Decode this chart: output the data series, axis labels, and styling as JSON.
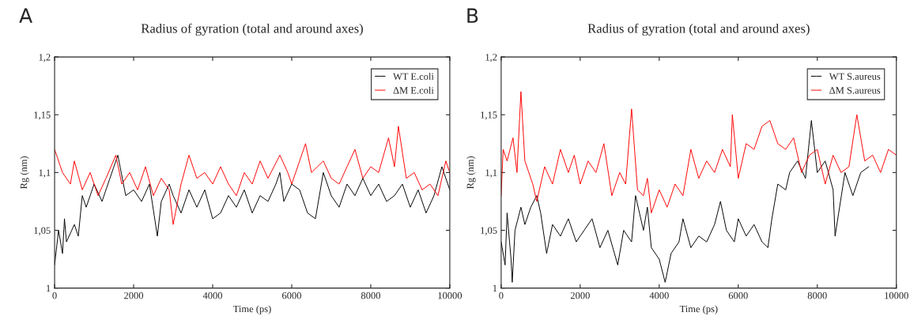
{
  "chart_data": [
    {
      "type": "line",
      "title": "Radius of gyration (total and around axes)",
      "xlabel": "Time (ps)",
      "ylabel": "Rg (nm)",
      "annotations": [
        "A"
      ],
      "xlim": [
        0,
        10000
      ],
      "xticks": [
        0,
        2000,
        4000,
        6000,
        8000,
        10000
      ],
      "ylim": [
        1,
        1.2
      ],
      "yticks": [
        1,
        {
          "value": 1.05,
          "label": "1,05"
        },
        {
          "value": 1.1,
          "label": "1,1"
        },
        {
          "value": 1.15,
          "label": "1,15"
        },
        {
          "value": 1.2,
          "label": "1,2"
        }
      ],
      "grid": false,
      "legend": "top right",
      "series": [
        {
          "name": "WT E.coli",
          "color": "#000000",
          "x": [
            0,
            100,
            200,
            250,
            300,
            500,
            600,
            700,
            800,
            1000,
            1200,
            1400,
            1600,
            1800,
            2000,
            2200,
            2400,
            2600,
            2700,
            2900,
            3000,
            3200,
            3400,
            3600,
            3800,
            4000,
            4200,
            4400,
            4600,
            4800,
            5000,
            5200,
            5400,
            5600,
            5700,
            5800,
            6000,
            6200,
            6400,
            6600,
            6800,
            7000,
            7200,
            7400,
            7600,
            7800,
            8000,
            8200,
            8400,
            8600,
            8800,
            9000,
            9200,
            9400,
            9600,
            9800,
            10000
          ],
          "values": [
            1.02,
            1.05,
            1.03,
            1.06,
            1.04,
            1.055,
            1.045,
            1.08,
            1.07,
            1.09,
            1.075,
            1.095,
            1.115,
            1.08,
            1.085,
            1.075,
            1.09,
            1.045,
            1.075,
            1.09,
            1.08,
            1.065,
            1.085,
            1.07,
            1.085,
            1.06,
            1.065,
            1.08,
            1.07,
            1.085,
            1.065,
            1.08,
            1.075,
            1.09,
            1.1,
            1.075,
            1.09,
            1.085,
            1.065,
            1.06,
            1.1,
            1.08,
            1.07,
            1.09,
            1.08,
            1.095,
            1.08,
            1.09,
            1.075,
            1.08,
            1.09,
            1.07,
            1.085,
            1.065,
            1.08,
            1.105,
            1.085
          ]
        },
        {
          "name": "ΔM E.coli",
          "color": "#ff0000",
          "x": [
            0,
            200,
            400,
            500,
            700,
            900,
            1100,
            1300,
            1550,
            1700,
            1900,
            2100,
            2300,
            2500,
            2700,
            2900,
            3000,
            3200,
            3400,
            3600,
            3800,
            4000,
            4200,
            4400,
            4600,
            4800,
            5000,
            5200,
            5400,
            5700,
            5900,
            6000,
            6200,
            6350,
            6500,
            6800,
            7000,
            7200,
            7400,
            7600,
            7800,
            8000,
            8200,
            8450,
            8600,
            8700,
            8900,
            9100,
            9300,
            9500,
            9700,
            9900,
            10000
          ],
          "values": [
            1.12,
            1.1,
            1.09,
            1.11,
            1.085,
            1.1,
            1.08,
            1.095,
            1.115,
            1.09,
            1.1,
            1.085,
            1.105,
            1.08,
            1.095,
            1.085,
            1.055,
            1.09,
            1.115,
            1.095,
            1.1,
            1.09,
            1.105,
            1.09,
            1.08,
            1.1,
            1.09,
            1.11,
            1.095,
            1.115,
            1.1,
            1.09,
            1.11,
            1.125,
            1.1,
            1.11,
            1.095,
            1.09,
            1.105,
            1.12,
            1.095,
            1.105,
            1.1,
            1.13,
            1.105,
            1.14,
            1.095,
            1.1,
            1.085,
            1.09,
            1.08,
            1.11,
            1.1
          ]
        }
      ]
    },
    {
      "type": "line",
      "title": "Radius of gyration (total and around axes)",
      "xlabel": "Time (ps)",
      "ylabel": "Rg (nm)",
      "annotations": [
        "B"
      ],
      "xlim": [
        0,
        10000
      ],
      "xticks": [
        0,
        2000,
        4000,
        6000,
        8000,
        10000
      ],
      "ylim": [
        1,
        1.2
      ],
      "yticks": [
        1,
        {
          "value": 1.05,
          "label": "1,05"
        },
        {
          "value": 1.1,
          "label": "1,1"
        },
        {
          "value": 1.15,
          "label": "1,15"
        },
        {
          "value": 1.2,
          "label": "1,2"
        }
      ],
      "grid": false,
      "legend": "top right",
      "series": [
        {
          "name": "WT S.aureus",
          "color": "#000000",
          "x": [
            0,
            100,
            150,
            250,
            280,
            350,
            500,
            600,
            750,
            900,
            1000,
            1150,
            1300,
            1500,
            1700,
            1900,
            2100,
            2300,
            2500,
            2700,
            2950,
            3100,
            3300,
            3400,
            3600,
            3700,
            3800,
            4000,
            4150,
            4300,
            4500,
            4600,
            4800,
            5000,
            5200,
            5400,
            5550,
            5700,
            5900,
            6000,
            6200,
            6400,
            6600,
            6750,
            6850,
            7000,
            7200,
            7300,
            7500,
            7700,
            7850,
            8000,
            8200,
            8400,
            8450,
            8700,
            8900,
            9100,
            9300
          ],
          "values": [
            1.04,
            1.02,
            1.065,
            1.025,
            1.005,
            1.05,
            1.07,
            1.055,
            1.07,
            1.08,
            1.065,
            1.03,
            1.055,
            1.045,
            1.06,
            1.04,
            1.05,
            1.06,
            1.035,
            1.05,
            1.02,
            1.05,
            1.04,
            1.08,
            1.05,
            1.07,
            1.035,
            1.025,
            1.005,
            1.03,
            1.04,
            1.06,
            1.035,
            1.045,
            1.04,
            1.055,
            1.075,
            1.05,
            1.04,
            1.06,
            1.045,
            1.055,
            1.04,
            1.035,
            1.06,
            1.09,
            1.085,
            1.1,
            1.11,
            1.095,
            1.145,
            1.1,
            1.11,
            1.085,
            1.045,
            1.1,
            1.08,
            1.1,
            1.105
          ]
        },
        {
          "name": "ΔM S.aureus",
          "color": "#ff0000",
          "x": [
            0,
            50,
            150,
            300,
            400,
            500,
            600,
            800,
            900,
            1100,
            1300,
            1500,
            1700,
            1850,
            2000,
            2200,
            2400,
            2600,
            2800,
            3000,
            3150,
            3300,
            3450,
            3600,
            3700,
            3800,
            4000,
            4200,
            4400,
            4600,
            4800,
            5000,
            5200,
            5400,
            5600,
            5800,
            5850,
            6000,
            6200,
            6400,
            6600,
            6800,
            7000,
            7200,
            7400,
            7600,
            7800,
            8000,
            8200,
            8400,
            8600,
            8800,
            9000,
            9200,
            9400,
            9600,
            9800,
            10000
          ],
          "values": [
            1.08,
            1.12,
            1.11,
            1.13,
            1.1,
            1.17,
            1.11,
            1.09,
            1.075,
            1.105,
            1.09,
            1.12,
            1.1,
            1.115,
            1.09,
            1.11,
            1.1,
            1.125,
            1.08,
            1.1,
            1.09,
            1.155,
            1.085,
            1.08,
            1.095,
            1.065,
            1.085,
            1.07,
            1.09,
            1.08,
            1.12,
            1.095,
            1.11,
            1.1,
            1.12,
            1.105,
            1.15,
            1.095,
            1.125,
            1.12,
            1.14,
            1.145,
            1.125,
            1.12,
            1.13,
            1.1,
            1.115,
            1.12,
            1.09,
            1.115,
            1.1,
            1.105,
            1.15,
            1.11,
            1.115,
            1.1,
            1.12,
            1.115
          ]
        }
      ]
    }
  ]
}
